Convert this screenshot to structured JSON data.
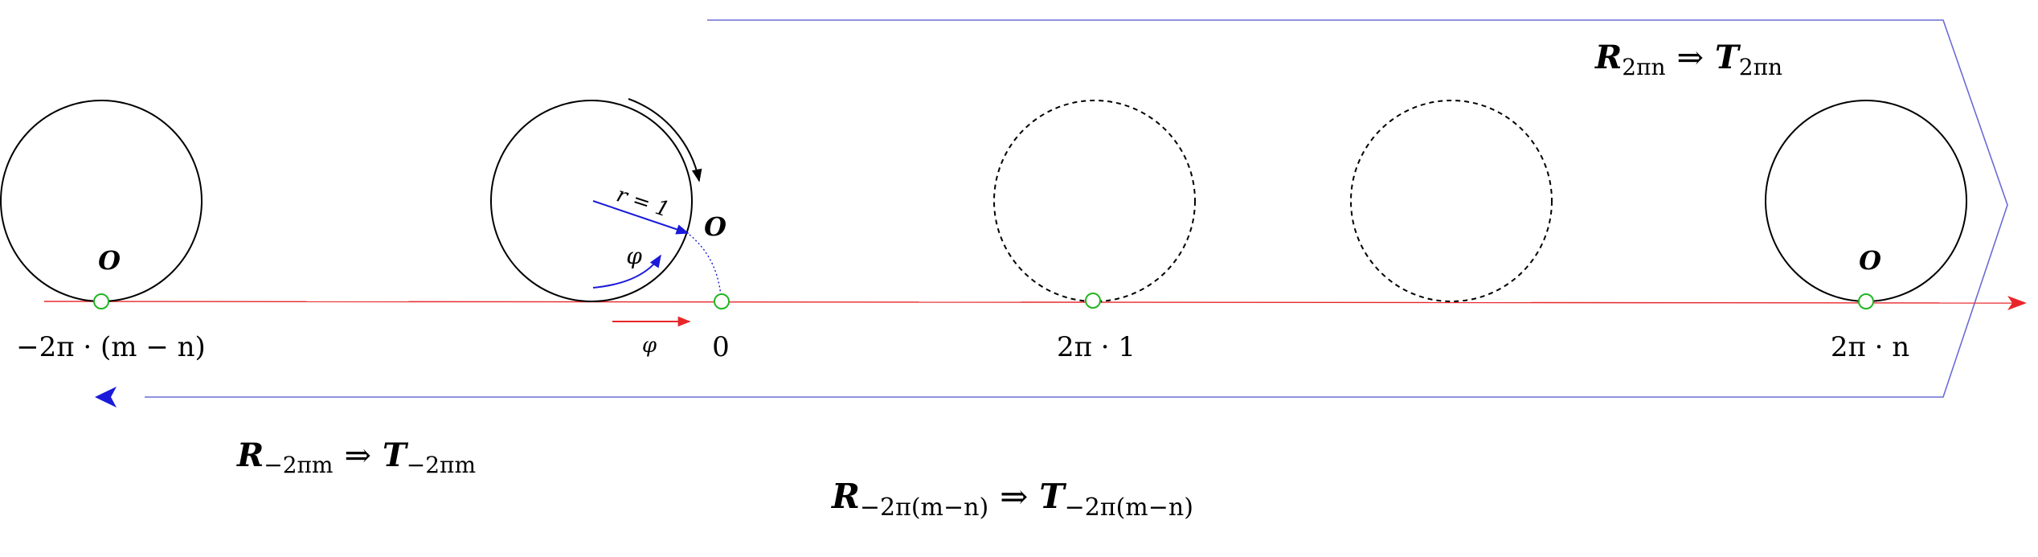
{
  "circles": {
    "left_point_label": "O",
    "middle_point_label": "O",
    "right_point_label": "O",
    "radius_label": "r = 1",
    "angle_label": "φ"
  },
  "axis": {
    "tick_left": "−2π · (m − n)",
    "tick_zero": "0",
    "tick_one": "2π · 1",
    "tick_n": "2π · n",
    "shift_label": "φ"
  },
  "annotations": {
    "upper_right": {
      "R": "R",
      "R_sub": "2πn",
      "arrow": "⇒",
      "T": "T",
      "T_sub": "2πn"
    },
    "lower_left": {
      "R": "R",
      "R_sub": "−2πm",
      "arrow": "⇒",
      "T": "T",
      "T_sub": "−2πm"
    },
    "bottom": {
      "R": "R",
      "R_sub": "−2π(m−n)",
      "arrow": "⇒",
      "T": "T",
      "T_sub": "−2π(m−n)"
    }
  },
  "colors": {
    "axis": "#e8262a",
    "blue": "#1a1adb",
    "bracket": "#6b6bd6",
    "contact": "#22b522",
    "circle": "#000000"
  }
}
